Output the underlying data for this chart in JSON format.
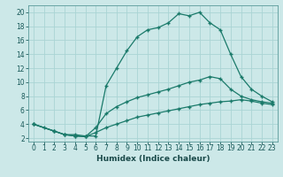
{
  "title": "",
  "xlabel": "Humidex (Indice chaleur)",
  "background_color": "#cce8e8",
  "grid_color": "#aad4d4",
  "line_color": "#1a7a6a",
  "xlim": [
    -0.5,
    23.5
  ],
  "ylim": [
    1.5,
    21
  ],
  "xticks": [
    0,
    1,
    2,
    3,
    4,
    5,
    6,
    7,
    8,
    9,
    10,
    11,
    12,
    13,
    14,
    15,
    16,
    17,
    18,
    19,
    20,
    21,
    22,
    23
  ],
  "yticks": [
    2,
    4,
    6,
    8,
    10,
    12,
    14,
    16,
    18,
    20
  ],
  "line1_x": [
    0,
    1,
    2,
    3,
    4,
    5,
    6,
    7,
    8,
    9,
    10,
    11,
    12,
    13,
    14,
    15,
    16,
    17,
    18,
    19,
    20,
    21,
    22,
    23
  ],
  "line1_y": [
    4,
    3.5,
    3,
    2.5,
    2.5,
    2.3,
    2.3,
    9.5,
    12,
    14.5,
    16.5,
    17.5,
    17.8,
    18.5,
    19.8,
    19.5,
    20,
    18.5,
    17.5,
    14,
    10.8,
    9,
    8,
    7.2
  ],
  "line2_x": [
    0,
    2,
    3,
    4,
    5,
    6,
    7,
    8,
    9,
    10,
    11,
    12,
    13,
    14,
    15,
    16,
    17,
    18,
    19,
    20,
    21,
    22,
    23
  ],
  "line2_y": [
    4,
    3,
    2.5,
    2.3,
    2.2,
    3.5,
    5.5,
    6.5,
    7.2,
    7.8,
    8.2,
    8.6,
    9.0,
    9.5,
    10.0,
    10.3,
    10.8,
    10.5,
    9.0,
    8.0,
    7.5,
    7.2,
    7.0
  ],
  "line3_x": [
    0,
    2,
    3,
    4,
    5,
    6,
    7,
    8,
    9,
    10,
    11,
    12,
    13,
    14,
    15,
    16,
    17,
    18,
    19,
    20,
    21,
    22,
    23
  ],
  "line3_y": [
    4,
    3,
    2.5,
    2.3,
    2.2,
    2.8,
    3.5,
    4.0,
    4.5,
    5.0,
    5.3,
    5.6,
    5.9,
    6.2,
    6.5,
    6.8,
    7.0,
    7.2,
    7.3,
    7.5,
    7.3,
    7.0,
    6.8
  ],
  "tick_fontsize": 5.5,
  "xlabel_fontsize": 6.5
}
